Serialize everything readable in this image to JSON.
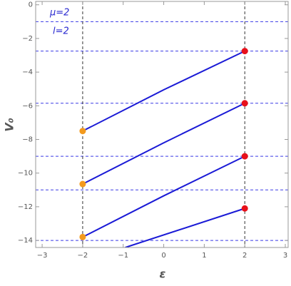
{
  "chart_data": {
    "type": "line",
    "x_label": "ε",
    "y_label": "V₀",
    "annotations": [
      "μ=2",
      "l=2"
    ],
    "xlim": [
      -3.16,
      3.07
    ],
    "ylim": [
      -14.42,
      0.2
    ],
    "xticks": [
      {
        "value": -3,
        "label": "−3"
      },
      {
        "value": -2,
        "label": "−2"
      },
      {
        "value": -1,
        "label": "−1"
      },
      0,
      1,
      2,
      3
    ],
    "yticks": [
      0,
      {
        "value": -2,
        "label": "−2"
      },
      {
        "value": -4,
        "label": "−4"
      },
      {
        "value": -6,
        "label": "−6"
      },
      {
        "value": -8,
        "label": "−8"
      },
      {
        "value": -10,
        "label": "−10"
      },
      {
        "value": -12,
        "label": "−12"
      },
      {
        "value": -14,
        "label": "−14"
      }
    ],
    "hlines": [
      -1,
      -2.75,
      -5.85,
      -9,
      -11,
      -14
    ],
    "hline_color": "#3b3be6",
    "vlines": [
      -2,
      2
    ],
    "vline_color": "#333333",
    "series": [
      {
        "color": "#1a1ad6",
        "x": [
          -2,
          0,
          2
        ],
        "values": [
          -7.5,
          -5.05,
          -2.75
        ]
      },
      {
        "color": "#1a1ad6",
        "x": [
          -2,
          0,
          2
        ],
        "values": [
          -10.65,
          -8.2,
          -5.85
        ]
      },
      {
        "color": "#1a1ad6",
        "x": [
          -2,
          0,
          2
        ],
        "values": [
          -13.8,
          -11.35,
          -9.0
        ]
      },
      {
        "color": "#1a1ad6",
        "x": [
          -0.95,
          2
        ],
        "values": [
          -14.42,
          -12.1
        ]
      }
    ],
    "points": [
      {
        "color": "#f39a1e",
        "x": [
          -2,
          -2,
          -2
        ],
        "values": [
          -7.5,
          -10.65,
          -13.8
        ]
      },
      {
        "color": "#e8101a",
        "x": [
          2,
          2,
          2,
          2
        ],
        "values": [
          -2.75,
          -5.85,
          -9.0,
          -12.1
        ]
      }
    ]
  }
}
